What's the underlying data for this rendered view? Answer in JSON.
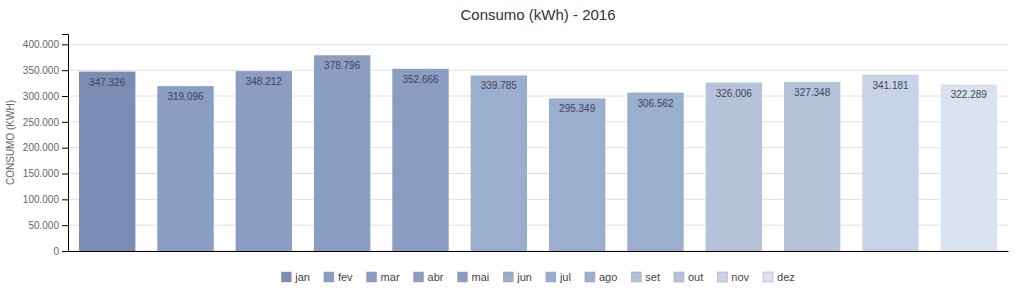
{
  "chart_data": {
    "type": "bar",
    "title": "Consumo (kWh) - 2016",
    "ylabel": "CONSUMO (KWH)",
    "categories": [
      "jan",
      "fev",
      "mar",
      "abr",
      "mai",
      "jun",
      "jul",
      "ago",
      "set",
      "out",
      "nov",
      "dez"
    ],
    "values": [
      347326,
      319096,
      348212,
      378796,
      352666,
      339785,
      295349,
      306562,
      326006,
      327348,
      341181,
      322289
    ],
    "value_labels": [
      "347.326",
      "319.096",
      "348.212",
      "378.796",
      "352.666",
      "339.785",
      "295.349",
      "306.562",
      "326.006",
      "327.348",
      "341.181",
      "322.289"
    ],
    "data_labels": true,
    "colors": [
      "#7b8db5",
      "#8b9dc3",
      "#8b9dc3",
      "#8b9dc3",
      "#8b9dc3",
      "#9aaece",
      "#9aaece",
      "#9aaece",
      "#b4c2da",
      "#b4c2da",
      "#c8d3e8",
      "#d8e2f0"
    ],
    "ylim": [
      0,
      420000
    ],
    "yticks": [
      0,
      {
        "value": 50000,
        "label": "50.000"
      },
      {
        "value": 100000,
        "label": "100.000"
      },
      {
        "value": 150000,
        "label": "150.000"
      },
      {
        "value": 200000,
        "label": "200.000"
      },
      {
        "value": 250000,
        "label": "250.000"
      },
      {
        "value": 300000,
        "label": "300.000"
      },
      {
        "value": 350000,
        "label": "350.000"
      },
      {
        "value": 400000,
        "label": "400.000"
      }
    ],
    "grid": true,
    "legend": "bottom",
    "tick_labels": "y"
  }
}
